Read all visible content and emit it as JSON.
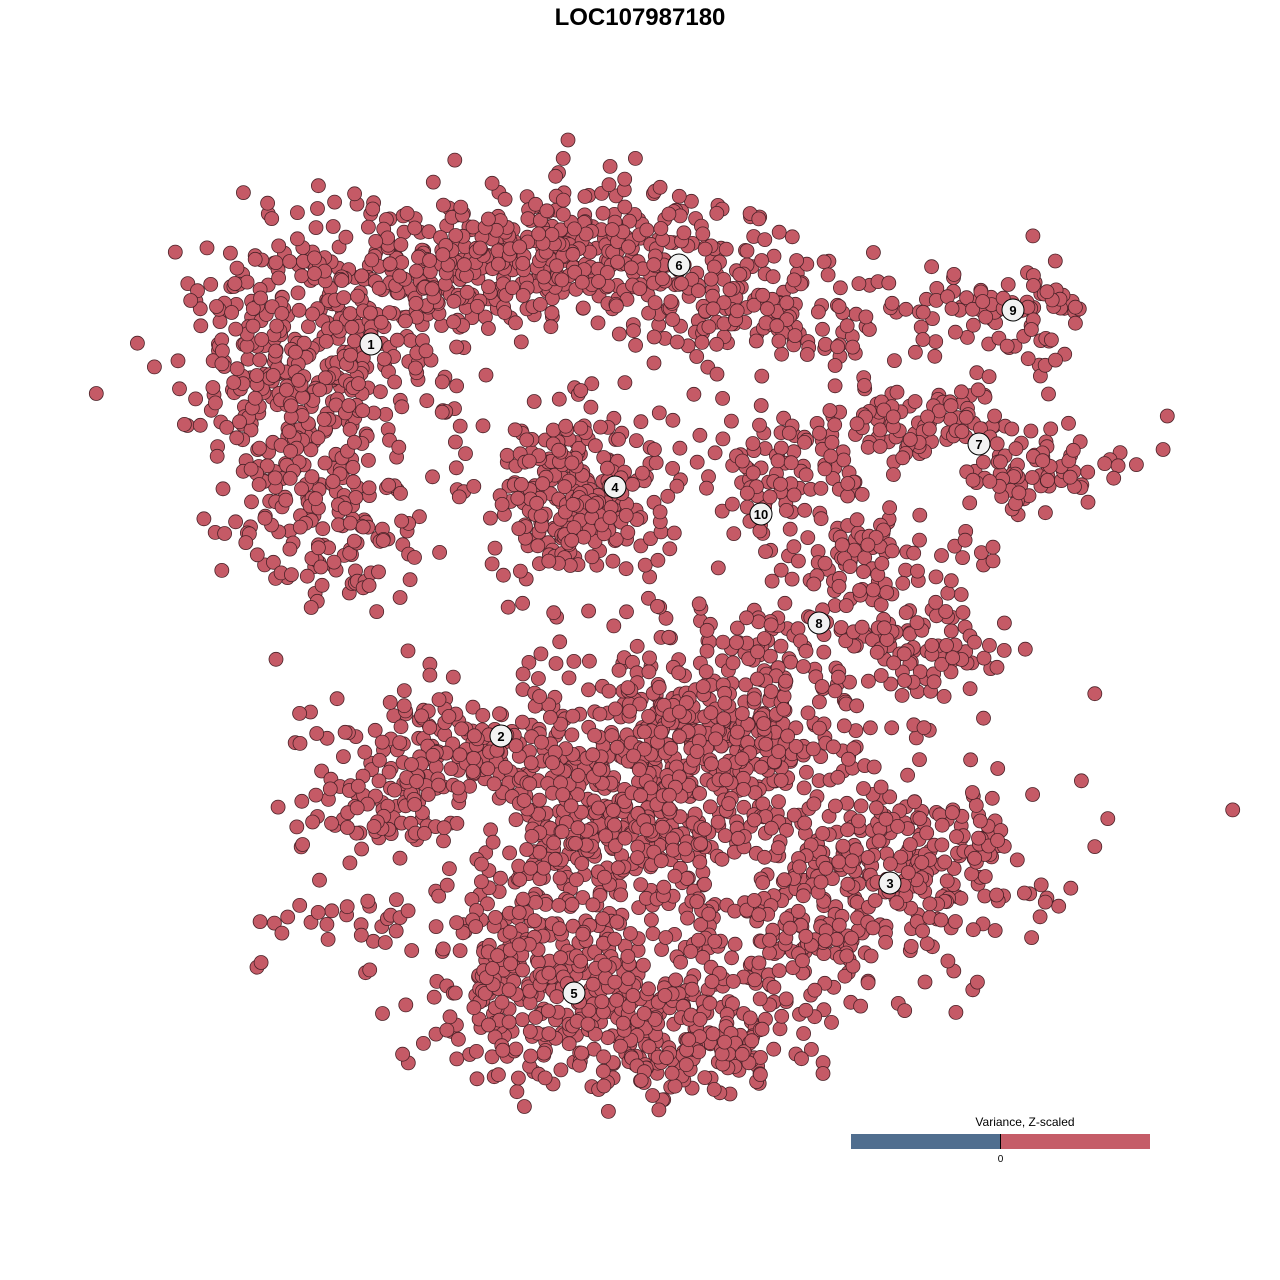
{
  "chart_data": {
    "type": "scatter",
    "title": "LOC107987180",
    "xlabel": "",
    "ylabel": "",
    "axes_visible": false,
    "grid": false,
    "point_color": "#c55a66",
    "point_outline": "#4a2228",
    "clusters": [
      {
        "label": "1"
      },
      {
        "label": "2"
      },
      {
        "label": "3"
      },
      {
        "label": "4"
      },
      {
        "label": "5"
      },
      {
        "label": "6"
      },
      {
        "label": "7"
      },
      {
        "label": "8"
      },
      {
        "label": "9"
      },
      {
        "label": "10"
      }
    ],
    "legend": {
      "title": "Variance, Z-scaled",
      "tick_label": "0",
      "low_color": "#506e8f",
      "high_color": "#c55d68",
      "placement": "bottom-right"
    }
  }
}
